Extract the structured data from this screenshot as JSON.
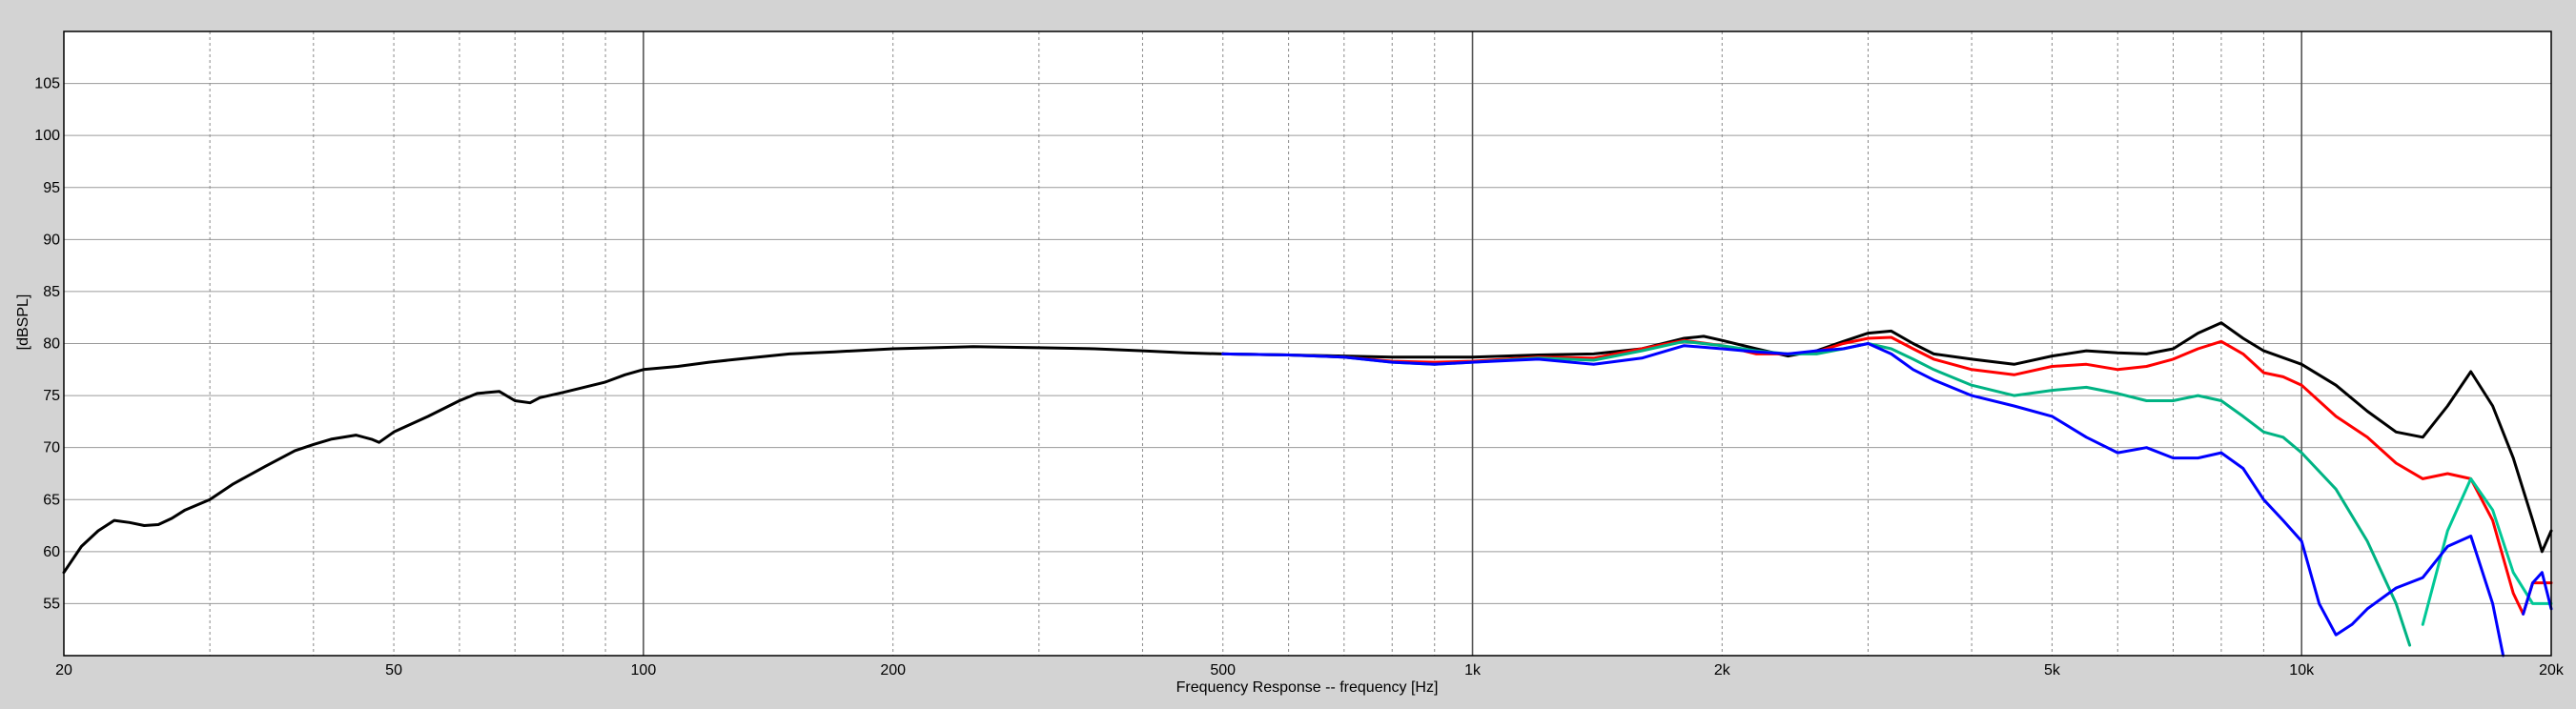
{
  "chart_data": {
    "type": "line",
    "title": "",
    "xlabel": "Frequency Response -- frequency [Hz]",
    "ylabel": "[dBSPL]",
    "x_scale": "log",
    "xlim": [
      20,
      20000
    ],
    "ylim": [
      50,
      110
    ],
    "grid": true,
    "x_ticks": [
      {
        "value": 20,
        "label": "20"
      },
      {
        "value": 50,
        "label": "50"
      },
      {
        "value": 100,
        "label": "100"
      },
      {
        "value": 200,
        "label": "200"
      },
      {
        "value": 500,
        "label": "500"
      },
      {
        "value": 1000,
        "label": "1k"
      },
      {
        "value": 2000,
        "label": "2k"
      },
      {
        "value": 5000,
        "label": "5k"
      },
      {
        "value": 10000,
        "label": "10k"
      },
      {
        "value": 20000,
        "label": "20k"
      }
    ],
    "y_ticks": [
      55,
      60,
      65,
      70,
      75,
      80,
      85,
      90,
      95,
      100,
      105
    ],
    "series": [
      {
        "color": "#000000",
        "points": [
          [
            20,
            58
          ],
          [
            21,
            60.5
          ],
          [
            22,
            62
          ],
          [
            23,
            63
          ],
          [
            24,
            62.8
          ],
          [
            25,
            62.5
          ],
          [
            26,
            62.6
          ],
          [
            27,
            63.2
          ],
          [
            28,
            64
          ],
          [
            30,
            65
          ],
          [
            32,
            66.5
          ],
          [
            35,
            68.2
          ],
          [
            38,
            69.7
          ],
          [
            40,
            70.3
          ],
          [
            42,
            70.8
          ],
          [
            45,
            71.2
          ],
          [
            47,
            70.8
          ],
          [
            48,
            70.5
          ],
          [
            50,
            71.5
          ],
          [
            55,
            73
          ],
          [
            60,
            74.5
          ],
          [
            63,
            75.2
          ],
          [
            67,
            75.4
          ],
          [
            70,
            74.5
          ],
          [
            73,
            74.3
          ],
          [
            75,
            74.8
          ],
          [
            80,
            75.3
          ],
          [
            90,
            76.3
          ],
          [
            95,
            77
          ],
          [
            100,
            77.5
          ],
          [
            110,
            77.8
          ],
          [
            120,
            78.2
          ],
          [
            130,
            78.5
          ],
          [
            150,
            79
          ],
          [
            170,
            79.2
          ],
          [
            200,
            79.5
          ],
          [
            250,
            79.7
          ],
          [
            300,
            79.6
          ],
          [
            350,
            79.5
          ],
          [
            400,
            79.3
          ],
          [
            450,
            79.1
          ],
          [
            500,
            79
          ],
          [
            600,
            78.9
          ],
          [
            700,
            78.8
          ],
          [
            800,
            78.7
          ],
          [
            900,
            78.7
          ],
          [
            1000,
            78.7
          ],
          [
            1200,
            78.9
          ],
          [
            1400,
            79
          ],
          [
            1600,
            79.5
          ],
          [
            1800,
            80.5
          ],
          [
            1900,
            80.7
          ],
          [
            2000,
            80.3
          ],
          [
            2200,
            79.5
          ],
          [
            2400,
            78.8
          ],
          [
            2600,
            79.3
          ],
          [
            2800,
            80.2
          ],
          [
            3000,
            81
          ],
          [
            3200,
            81.2
          ],
          [
            3400,
            80
          ],
          [
            3600,
            79
          ],
          [
            4000,
            78.5
          ],
          [
            4500,
            78
          ],
          [
            5000,
            78.8
          ],
          [
            5500,
            79.3
          ],
          [
            6000,
            79.1
          ],
          [
            6500,
            79
          ],
          [
            7000,
            79.5
          ],
          [
            7500,
            81
          ],
          [
            8000,
            82
          ],
          [
            8500,
            80.5
          ],
          [
            9000,
            79.3
          ],
          [
            10000,
            78
          ],
          [
            11000,
            76
          ],
          [
            12000,
            73.5
          ],
          [
            13000,
            71.5
          ],
          [
            14000,
            71
          ],
          [
            15000,
            74
          ],
          [
            16000,
            77.3
          ],
          [
            17000,
            74
          ],
          [
            18000,
            69
          ],
          [
            19000,
            63
          ],
          [
            19500,
            60
          ],
          [
            20000,
            62
          ]
        ]
      },
      {
        "color": "#ff0000",
        "points": [
          [
            500,
            79
          ],
          [
            600,
            78.9
          ],
          [
            700,
            78.7
          ],
          [
            800,
            78.3
          ],
          [
            900,
            78.2
          ],
          [
            1000,
            78.3
          ],
          [
            1200,
            78.7
          ],
          [
            1400,
            78.6
          ],
          [
            1600,
            79.5
          ],
          [
            1800,
            80.3
          ],
          [
            2000,
            79.8
          ],
          [
            2200,
            79
          ],
          [
            2400,
            79
          ],
          [
            2600,
            79.2
          ],
          [
            2800,
            80
          ],
          [
            3000,
            80.5
          ],
          [
            3200,
            80.6
          ],
          [
            3400,
            79.5
          ],
          [
            3600,
            78.5
          ],
          [
            4000,
            77.5
          ],
          [
            4500,
            77
          ],
          [
            5000,
            77.8
          ],
          [
            5500,
            78
          ],
          [
            6000,
            77.5
          ],
          [
            6500,
            77.8
          ],
          [
            7000,
            78.5
          ],
          [
            7500,
            79.5
          ],
          [
            8000,
            80.2
          ],
          [
            8500,
            79
          ],
          [
            9000,
            77.2
          ],
          [
            9500,
            76.8
          ],
          [
            10000,
            76
          ],
          [
            11000,
            73
          ],
          [
            12000,
            71
          ],
          [
            13000,
            68.5
          ],
          [
            14000,
            67
          ],
          [
            15000,
            67.5
          ],
          [
            16000,
            67
          ],
          [
            17000,
            63
          ],
          [
            18000,
            56
          ],
          [
            18500,
            54
          ],
          [
            19000,
            57
          ],
          [
            20000,
            57
          ]
        ]
      },
      {
        "color": "#00b383",
        "points": [
          [
            500,
            79
          ],
          [
            600,
            78.9
          ],
          [
            700,
            78.7
          ],
          [
            800,
            78.2
          ],
          [
            900,
            78
          ],
          [
            1000,
            78.2
          ],
          [
            1200,
            78.6
          ],
          [
            1400,
            78.4
          ],
          [
            1600,
            79.3
          ],
          [
            1800,
            80.2
          ],
          [
            2000,
            79.8
          ],
          [
            2200,
            79.3
          ],
          [
            2400,
            79
          ],
          [
            2600,
            79
          ],
          [
            2800,
            79.5
          ],
          [
            3000,
            80
          ],
          [
            3200,
            79.5
          ],
          [
            3400,
            78.5
          ],
          [
            3600,
            77.5
          ],
          [
            4000,
            76
          ],
          [
            4500,
            75
          ],
          [
            5000,
            75.5
          ],
          [
            5500,
            75.8
          ],
          [
            6000,
            75.2
          ],
          [
            6500,
            74.5
          ],
          [
            7000,
            74.5
          ],
          [
            7500,
            75
          ],
          [
            8000,
            74.5
          ],
          [
            8500,
            73
          ],
          [
            9000,
            71.5
          ],
          [
            9500,
            71
          ],
          [
            10000,
            69.5
          ],
          [
            11000,
            66
          ],
          [
            12000,
            61
          ],
          [
            13000,
            55
          ],
          [
            13500,
            51
          ]
        ]
      },
      {
        "color": "#00c896",
        "points": [
          [
            14000,
            53
          ],
          [
            15000,
            62
          ],
          [
            16000,
            67
          ],
          [
            17000,
            64
          ],
          [
            18000,
            58
          ],
          [
            19000,
            55
          ],
          [
            20000,
            55
          ]
        ]
      },
      {
        "color": "#0000ff",
        "points": [
          [
            500,
            79
          ],
          [
            600,
            78.9
          ],
          [
            700,
            78.7
          ],
          [
            800,
            78.2
          ],
          [
            900,
            78
          ],
          [
            1000,
            78.2
          ],
          [
            1200,
            78.5
          ],
          [
            1400,
            78
          ],
          [
            1600,
            78.6
          ],
          [
            1800,
            79.8
          ],
          [
            2000,
            79.5
          ],
          [
            2200,
            79.2
          ],
          [
            2400,
            79
          ],
          [
            2600,
            79.3
          ],
          [
            2800,
            79.5
          ],
          [
            3000,
            80
          ],
          [
            3200,
            79
          ],
          [
            3400,
            77.5
          ],
          [
            3600,
            76.5
          ],
          [
            4000,
            75
          ],
          [
            4500,
            74
          ],
          [
            5000,
            73
          ],
          [
            5500,
            71
          ],
          [
            6000,
            69.5
          ],
          [
            6500,
            70
          ],
          [
            7000,
            69
          ],
          [
            7500,
            69
          ],
          [
            8000,
            69.5
          ],
          [
            8500,
            68
          ],
          [
            9000,
            65
          ],
          [
            9500,
            63
          ],
          [
            10000,
            61
          ],
          [
            10500,
            55
          ],
          [
            11000,
            52
          ],
          [
            11500,
            53
          ],
          [
            12000,
            54.5
          ],
          [
            13000,
            56.5
          ],
          [
            14000,
            57.5
          ],
          [
            15000,
            60.5
          ],
          [
            16000,
            61.5
          ],
          [
            17000,
            55
          ],
          [
            17500,
            50
          ]
        ]
      },
      {
        "color": "#0000ff",
        "points": [
          [
            18500,
            54
          ],
          [
            19000,
            57
          ],
          [
            19500,
            58
          ],
          [
            20000,
            54.5
          ]
        ]
      }
    ]
  }
}
